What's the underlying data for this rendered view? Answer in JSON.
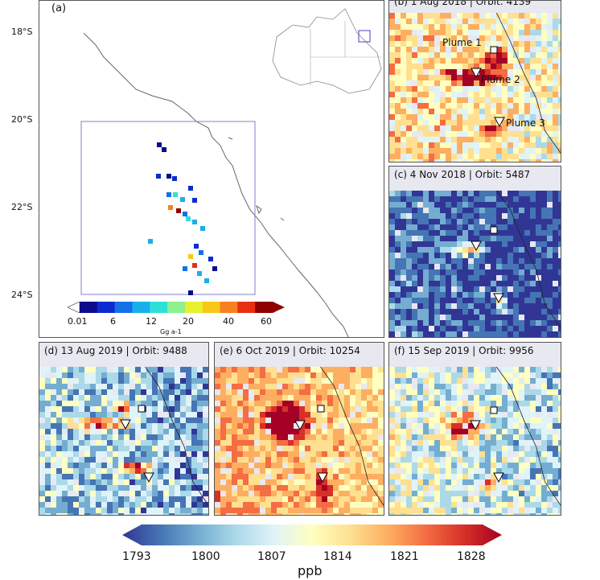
{
  "panel_a": {
    "label": "(a)",
    "lat_ticks": [
      "18°S",
      "20°S",
      "22°S",
      "24°S"
    ],
    "colorbar": {
      "ticks": [
        "0.01",
        "6",
        "12",
        "20",
        "40",
        "60"
      ],
      "unit": "Gg a-1",
      "colors": [
        "#0b0b8c",
        "#0b2bd0",
        "#1570e8",
        "#18b0e8",
        "#2ee0d8",
        "#8cf08c",
        "#e8f030",
        "#f8c818",
        "#f88020",
        "#e83010",
        "#900000"
      ]
    }
  },
  "panels": [
    {
      "id": "b",
      "title": "(b) 1 Aug 2018 | Orbit: 4139",
      "labels": [
        "Plume 1",
        "Plume 2",
        "Plume 3"
      ]
    },
    {
      "id": "c",
      "title": "(c) 4 Nov 2018 | Orbit: 5487"
    },
    {
      "id": "d",
      "title": "(d) 13 Aug 2019 | Orbit: 9488"
    },
    {
      "id": "e",
      "title": "(e) 6 Oct 2019 | Orbit: 10254"
    },
    {
      "id": "f",
      "title": "(f) 15 Sep 2019 | Orbit: 9956"
    }
  ],
  "colorbar_main": {
    "ticks": [
      "1793",
      "1800",
      "1807",
      "1814",
      "1821",
      "1828"
    ],
    "unit": "ppb",
    "colors": [
      "#313695",
      "#4575b4",
      "#74add1",
      "#abd9e9",
      "#e0f3f8",
      "#ffffbf",
      "#fee090",
      "#fdae61",
      "#f46d43",
      "#d73027",
      "#a50026"
    ]
  }
}
